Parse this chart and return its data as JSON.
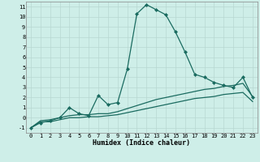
{
  "xlabel": "Humidex (Indice chaleur)",
  "background_color": "#ceeee8",
  "grid_color": "#b8d8d2",
  "line_color": "#1a6b60",
  "xlim": [
    -0.5,
    23.5
  ],
  "ylim": [
    -1.5,
    11.5
  ],
  "xticks": [
    0,
    1,
    2,
    3,
    4,
    5,
    6,
    7,
    8,
    9,
    10,
    11,
    12,
    13,
    14,
    15,
    16,
    17,
    18,
    19,
    20,
    21,
    22,
    23
  ],
  "yticks": [
    -1,
    0,
    1,
    2,
    3,
    4,
    5,
    6,
    7,
    8,
    9,
    10,
    11
  ],
  "series": [
    {
      "x": [
        0,
        1,
        2,
        3,
        4,
        5,
        6,
        7,
        8,
        9,
        10,
        11,
        12,
        13,
        14,
        15,
        16,
        17,
        18,
        19,
        20,
        21,
        22,
        23
      ],
      "y": [
        -1,
        -0.5,
        -0.3,
        0.0,
        1.0,
        0.4,
        0.2,
        2.2,
        1.3,
        1.5,
        4.8,
        10.3,
        11.2,
        10.7,
        10.2,
        8.5,
        6.5,
        4.3,
        4.0,
        3.5,
        3.2,
        3.0,
        4.0,
        2.0
      ],
      "marker": "D",
      "markersize": 2.0,
      "linewidth": 0.9,
      "has_marker": true
    },
    {
      "x": [
        0,
        1,
        2,
        3,
        4,
        5,
        6,
        7,
        8,
        9,
        10,
        11,
        12,
        13,
        14,
        15,
        16,
        17,
        18,
        19,
        20,
        21,
        22,
        23
      ],
      "y": [
        -1,
        -0.3,
        -0.2,
        0.0,
        0.2,
        0.3,
        0.3,
        0.4,
        0.4,
        0.6,
        0.9,
        1.2,
        1.5,
        1.8,
        2.0,
        2.2,
        2.4,
        2.6,
        2.8,
        2.9,
        3.1,
        3.2,
        3.4,
        2.1
      ],
      "marker": null,
      "markersize": 0,
      "linewidth": 0.9,
      "has_marker": false
    },
    {
      "x": [
        0,
        1,
        2,
        3,
        4,
        5,
        6,
        7,
        8,
        9,
        10,
        11,
        12,
        13,
        14,
        15,
        16,
        17,
        18,
        19,
        20,
        21,
        22,
        23
      ],
      "y": [
        -1,
        -0.4,
        -0.4,
        -0.2,
        0.0,
        0.0,
        0.1,
        0.1,
        0.2,
        0.3,
        0.5,
        0.7,
        0.9,
        1.1,
        1.3,
        1.5,
        1.7,
        1.9,
        2.0,
        2.1,
        2.3,
        2.4,
        2.5,
        1.6
      ],
      "marker": null,
      "markersize": 0,
      "linewidth": 0.9,
      "has_marker": false
    }
  ]
}
